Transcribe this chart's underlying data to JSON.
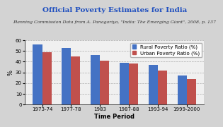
{
  "title": "Official Poverty Estimates for India",
  "subtitle": "Planning Commission Data from A. Panagariya, \"India: The Emerging Giant\", 2008, p. 137",
  "categories": [
    "1973-74",
    "1977-78",
    "1983",
    "1987-88",
    "1993-94",
    "1999-2000"
  ],
  "rural": [
    56,
    53,
    46,
    39,
    37,
    27
  ],
  "urban": [
    49,
    45,
    41,
    38,
    32,
    24
  ],
  "rural_color": "#4472C4",
  "urban_color": "#C0504D",
  "xlabel": "Time Period",
  "ylabel": "%",
  "ylim": [
    0,
    60
  ],
  "yticks": [
    0,
    10,
    20,
    30,
    40,
    50,
    60
  ],
  "legend_rural": "Rural Poverty Ratio (%)",
  "legend_urban": "Urban Poverty Ratio (%)",
  "bg_color": "#D3D3D3",
  "plot_bg_color": "#F0F0F0",
  "title_color": "#1F4FBF",
  "subtitle_fontsize": 4.5,
  "title_fontsize": 7.5,
  "axis_label_fontsize": 6,
  "tick_fontsize": 5,
  "legend_fontsize": 5,
  "bar_width": 0.32
}
